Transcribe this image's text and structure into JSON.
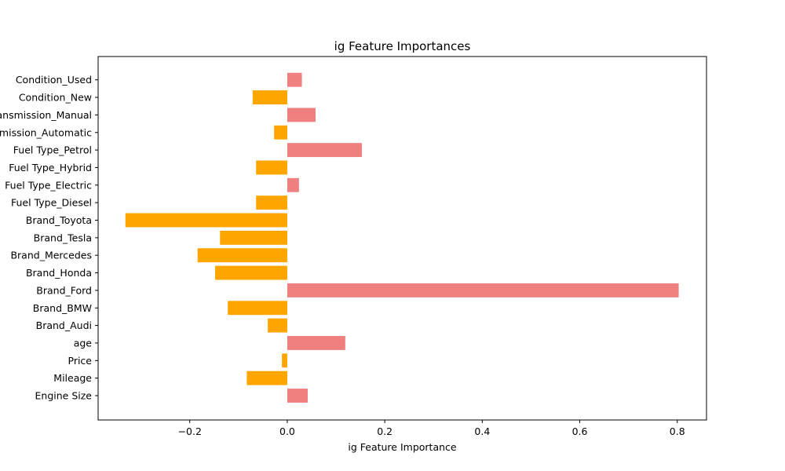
{
  "chart_data": {
    "type": "bar",
    "orientation": "horizontal",
    "title": "ig Feature Importances",
    "xlabel": "ig Feature Importance",
    "ylabel": "",
    "xlim": [
      -0.388,
      0.86
    ],
    "xticks": [
      -0.2,
      0.0,
      0.2,
      0.4,
      0.6,
      0.8
    ],
    "xtick_labels": [
      "−0.2",
      "0.0",
      "0.2",
      "0.4",
      "0.6",
      "0.8"
    ],
    "grid": false,
    "legend": "none",
    "categories": [
      "Engine Size",
      "Mileage",
      "Price",
      "age",
      "Brand_Audi",
      "Brand_BMW",
      "Brand_Ford",
      "Brand_Honda",
      "Brand_Mercedes",
      "Brand_Tesla",
      "Brand_Toyota",
      "Fuel Type_Diesel",
      "Fuel Type_Electric",
      "Fuel Type_Hybrid",
      "Fuel Type_Petrol",
      "Transmission_Automatic",
      "Transmission_Manual",
      "Condition_New",
      "Condition_Used"
    ],
    "values": [
      0.042,
      -0.083,
      -0.011,
      0.119,
      -0.04,
      -0.122,
      0.803,
      -0.148,
      -0.184,
      -0.138,
      -0.332,
      -0.064,
      0.024,
      -0.064,
      0.153,
      -0.027,
      0.058,
      -0.071,
      0.03
    ],
    "colors": {
      "positive": "#f08080",
      "negative": "#ffa500"
    }
  }
}
